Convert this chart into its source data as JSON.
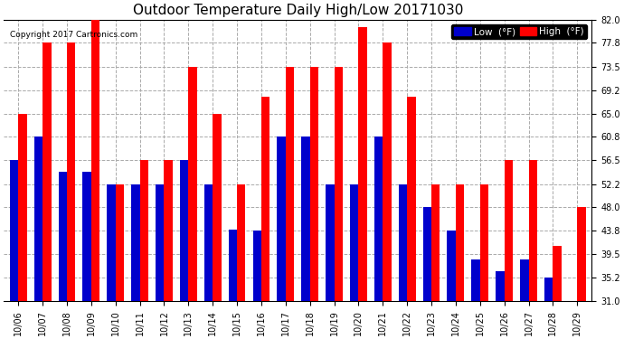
{
  "title": "Outdoor Temperature Daily High/Low 20171030",
  "copyright": "Copyright 2017 Cartronics.com",
  "dates": [
    "10/06",
    "10/07",
    "10/08",
    "10/09",
    "10/10",
    "10/11",
    "10/12",
    "10/13",
    "10/14",
    "10/15",
    "10/16",
    "10/17",
    "10/18",
    "10/19",
    "10/20",
    "10/21",
    "10/22",
    "10/23",
    "10/24",
    "10/25",
    "10/26",
    "10/27",
    "10/28",
    "10/29"
  ],
  "highs": [
    65.0,
    77.8,
    77.8,
    82.0,
    52.2,
    56.5,
    56.5,
    73.5,
    65.0,
    52.2,
    68.0,
    73.5,
    73.5,
    73.5,
    80.6,
    77.8,
    68.0,
    52.2,
    52.2,
    52.2,
    56.5,
    56.5,
    41.0,
    48.0
  ],
  "lows": [
    56.5,
    60.8,
    54.5,
    54.5,
    52.2,
    52.2,
    52.2,
    56.5,
    52.2,
    44.0,
    43.8,
    60.8,
    60.8,
    52.2,
    52.2,
    60.8,
    52.2,
    48.0,
    43.8,
    38.5,
    36.5,
    38.5,
    35.2,
    31.0
  ],
  "low_color": "#0000cc",
  "high_color": "#ff0000",
  "background_color": "#ffffff",
  "plot_bg_color": "#ffffff",
  "grid_color": "#aaaaaa",
  "ylim_low": 31.0,
  "ylim_high": 82.0,
  "yticks": [
    31.0,
    35.2,
    39.5,
    43.8,
    48.0,
    52.2,
    56.5,
    60.8,
    65.0,
    69.2,
    73.5,
    77.8,
    82.0
  ],
  "ytick_labels": [
    "31.0",
    "35.2",
    "39.5",
    "43.8",
    "48.0",
    "52.2",
    "56.5",
    "60.8",
    "65.0",
    "69.2",
    "73.5",
    "77.8",
    "82.0"
  ],
  "title_fontsize": 11,
  "tick_fontsize": 7,
  "legend_low_label": "Low  (°F)",
  "legend_high_label": "High  (°F)",
  "bar_width": 0.35
}
